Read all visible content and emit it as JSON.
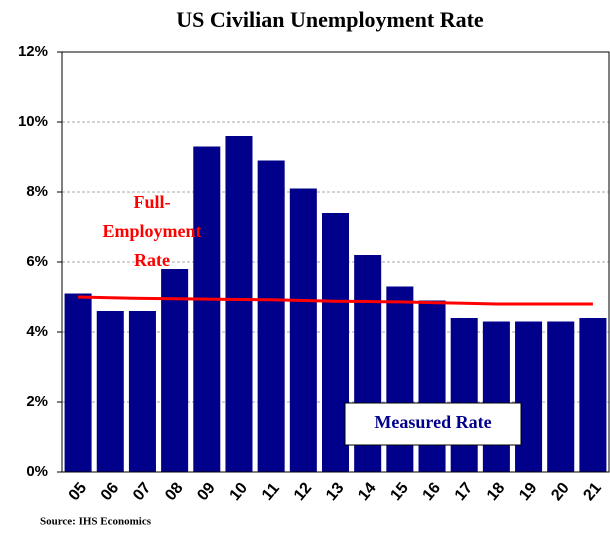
{
  "chart_data": {
    "type": "bar",
    "title": "US Civilian Unemployment Rate",
    "categories": [
      "05",
      "06",
      "07",
      "08",
      "09",
      "10",
      "11",
      "12",
      "13",
      "14",
      "15",
      "16",
      "17",
      "18",
      "19",
      "20",
      "21"
    ],
    "series": [
      {
        "type": "bar",
        "color": "#00008b",
        "values": [
          5.1,
          4.6,
          4.6,
          5.8,
          9.3,
          9.6,
          8.9,
          8.1,
          7.4,
          6.2,
          5.3,
          4.9,
          4.4,
          4.3,
          4.3,
          4.3,
          4.4
        ]
      },
      {
        "type": "line",
        "color": "#ff0000",
        "values": [
          5.0,
          4.98,
          4.96,
          4.95,
          4.94,
          4.93,
          4.92,
          4.9,
          4.88,
          4.87,
          4.86,
          4.84,
          4.82,
          4.8,
          4.8,
          4.8,
          4.8
        ]
      }
    ],
    "ylim": [
      0,
      12
    ],
    "yticks": [
      {
        "value": 0,
        "label": "0%"
      },
      {
        "value": 2,
        "label": "2%"
      },
      {
        "value": 4,
        "label": "4%"
      },
      {
        "value": 6,
        "label": "6%"
      },
      {
        "value": 8,
        "label": "8%"
      },
      {
        "value": 10,
        "label": "10%"
      },
      {
        "value": 12,
        "label": "12%"
      }
    ],
    "grid": true,
    "annotations": [
      {
        "text": [
          "Full-",
          "Employment",
          "Rate"
        ],
        "color": "#ff0000"
      },
      {
        "text": "Measured Rate",
        "color": "#00008b"
      }
    ],
    "source": "Source: IHS Economics"
  }
}
